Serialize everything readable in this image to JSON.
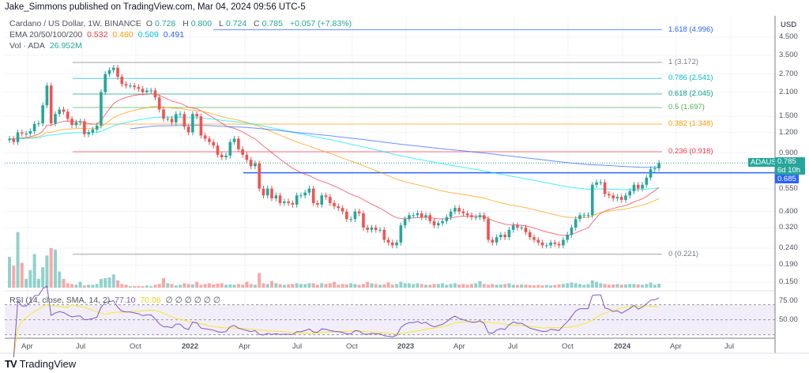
{
  "header": {
    "published": "Jake_Simmons published on TradingView.com, Mar 04, 2024 09:56 UTC-5"
  },
  "legend": {
    "symbol": "Cardano / US Dollar, 1W, BINANCE",
    "o_label": "O",
    "o": "0.728",
    "h_label": "H",
    "h": "0.800",
    "l_label": "L",
    "l": "0.724",
    "c_label": "C",
    "c": "0.785",
    "change": "+0.057 (+7.83%)",
    "ema_label": "EMA 20/50/100/200",
    "ema20": "0.532",
    "ema50": "0.460",
    "ema100": "0.509",
    "ema200": "0.491",
    "vol_label": "Vol · ADA",
    "vol": "26.952M",
    "rsi_label": "RSI (14, close, SMA, 14, 2)",
    "rsi": "77.10",
    "rsi_sma": "70.08",
    "rsi_empty": "∅ ∅ ∅ ∅ ∅ ∅"
  },
  "colors": {
    "up": "#26a69a",
    "down": "#ef5350",
    "ema20": "#f23645",
    "ema50": "#ff9800",
    "ema100": "#00e5ff",
    "ema200": "#2962ff",
    "hline": "#2962ff",
    "rsi": "#7e57c2",
    "rsi_sma": "#f5e72a"
  },
  "price_axis": {
    "currency": "USD",
    "ticks": [
      "4.500",
      "3.500",
      "2.700",
      "2.100",
      "1.500",
      "1.200",
      "0.900",
      "0.550",
      "0.400",
      "0.320",
      "0.240",
      "0.190",
      "0.150"
    ]
  },
  "rsi_axis": {
    "ticks": [
      "75.00",
      "50.00"
    ]
  },
  "time_axis": {
    "ticks": [
      "Apr",
      "Jul",
      "Oct",
      "2022",
      "Apr",
      "Jul",
      "Oct",
      "2023",
      "Apr",
      "Jul",
      "Oct",
      "2024",
      "Apr",
      "Jul"
    ]
  },
  "tags": {
    "symbol": "ADAUSD",
    "last_price": "0.785",
    "countdown": "6d 10h",
    "hline_price": "0.685"
  },
  "footer": {
    "brand": "TradingView"
  },
  "chart_data": {
    "type": "candlestick",
    "interval": "1W",
    "y_scale": "log",
    "ylim": [
      0.13,
      5.6
    ],
    "first_week": "2021-03-08",
    "last_week": "2024-03-04",
    "close": [
      1.1,
      1.05,
      1.2,
      1.18,
      1.18,
      1.22,
      1.35,
      1.36,
      1.75,
      2.3,
      1.36,
      1.55,
      1.65,
      1.6,
      1.45,
      1.33,
      1.38,
      1.4,
      1.17,
      1.2,
      1.25,
      1.32,
      2.1,
      2.7,
      2.85,
      2.95,
      2.6,
      2.35,
      2.3,
      2.3,
      2.25,
      2.2,
      2.1,
      2.15,
      2.15,
      1.95,
      1.65,
      1.45,
      1.45,
      1.38,
      1.55,
      1.55,
      1.3,
      1.2,
      1.55,
      1.5,
      1.15,
      1.1,
      1.05,
      1.0,
      0.88,
      0.85,
      0.87,
      1.05,
      1.1,
      0.95,
      0.88,
      0.82,
      0.75,
      0.78,
      0.55,
      0.5,
      0.55,
      0.48,
      0.5,
      0.45,
      0.46,
      0.45,
      0.44,
      0.5,
      0.5,
      0.52,
      0.55,
      0.45,
      0.44,
      0.5,
      0.49,
      0.45,
      0.43,
      0.42,
      0.4,
      0.36,
      0.36,
      0.4,
      0.39,
      0.32,
      0.31,
      0.32,
      0.31,
      0.31,
      0.27,
      0.26,
      0.25,
      0.26,
      0.33,
      0.36,
      0.38,
      0.38,
      0.39,
      0.37,
      0.38,
      0.35,
      0.33,
      0.34,
      0.35,
      0.37,
      0.4,
      0.42,
      0.4,
      0.39,
      0.38,
      0.37,
      0.37,
      0.38,
      0.36,
      0.27,
      0.26,
      0.28,
      0.29,
      0.28,
      0.31,
      0.33,
      0.32,
      0.32,
      0.3,
      0.28,
      0.27,
      0.26,
      0.25,
      0.25,
      0.26,
      0.255,
      0.25,
      0.27,
      0.29,
      0.32,
      0.36,
      0.38,
      0.38,
      0.38,
      0.58,
      0.6,
      0.6,
      0.51,
      0.5,
      0.48,
      0.49,
      0.47,
      0.5,
      0.53,
      0.58,
      0.55,
      0.58,
      0.64,
      0.72,
      0.728,
      0.785
    ],
    "volume_millions": [
      210,
      150,
      380,
      170,
      60,
      120,
      230,
      60,
      140,
      220,
      270,
      260,
      110,
      60,
      30,
      25,
      20,
      40,
      15,
      20,
      20,
      25,
      60,
      65,
      70,
      90,
      50,
      25,
      20,
      10,
      10,
      12,
      10,
      15,
      10,
      20,
      25,
      65,
      30,
      25,
      15,
      20,
      30,
      25,
      22,
      40,
      20,
      25,
      30,
      22,
      28,
      30,
      20,
      22,
      20,
      25,
      20,
      40,
      25,
      20,
      100,
      30,
      25,
      45,
      30,
      25,
      20,
      22,
      25,
      30,
      25,
      25,
      30,
      30,
      20,
      30,
      25,
      30,
      40,
      20,
      25,
      22,
      30,
      25,
      20,
      25,
      40,
      30,
      25,
      20,
      22,
      35,
      20,
      25,
      40,
      30,
      30,
      25,
      30,
      25,
      20,
      20,
      25,
      25,
      30,
      20,
      25,
      30,
      22,
      25,
      20,
      25,
      30,
      45,
      25,
      20,
      25,
      20,
      22,
      25,
      30,
      20,
      18,
      22,
      20,
      18,
      15,
      18,
      15,
      18,
      15,
      18,
      22,
      25,
      30,
      35,
      30,
      25,
      20,
      25,
      50,
      40,
      30,
      25,
      20,
      22,
      25,
      20,
      22,
      25,
      25,
      22,
      20,
      25,
      35,
      20,
      27
    ],
    "fib_levels": [
      {
        "label": "1.618 (4.996)",
        "ratio": 1.618,
        "price": 4.996,
        "color": "#2962ff"
      },
      {
        "label": "1 (3.172)",
        "ratio": 1,
        "price": 3.172,
        "color": "#787b86"
      },
      {
        "label": "0.786 (2.541)",
        "ratio": 0.786,
        "price": 2.541,
        "color": "#00bcd4"
      },
      {
        "label": "0.618 (2.045)",
        "ratio": 0.618,
        "price": 2.045,
        "color": "#089981"
      },
      {
        "label": "0.5 (1.697)",
        "ratio": 0.5,
        "price": 1.697,
        "color": "#4caf50"
      },
      {
        "label": "0.382 (1.348)",
        "ratio": 0.382,
        "price": 1.348,
        "color": "#ff9800"
      },
      {
        "label": "0.236 (0.918)",
        "ratio": 0.236,
        "price": 0.918,
        "color": "#f23645"
      },
      {
        "label": "0 (0.221)",
        "ratio": 0,
        "price": 0.221,
        "color": "#787b86"
      }
    ],
    "horizontal_line": 0.685,
    "rsi_bands": [
      70,
      50,
      30
    ]
  }
}
